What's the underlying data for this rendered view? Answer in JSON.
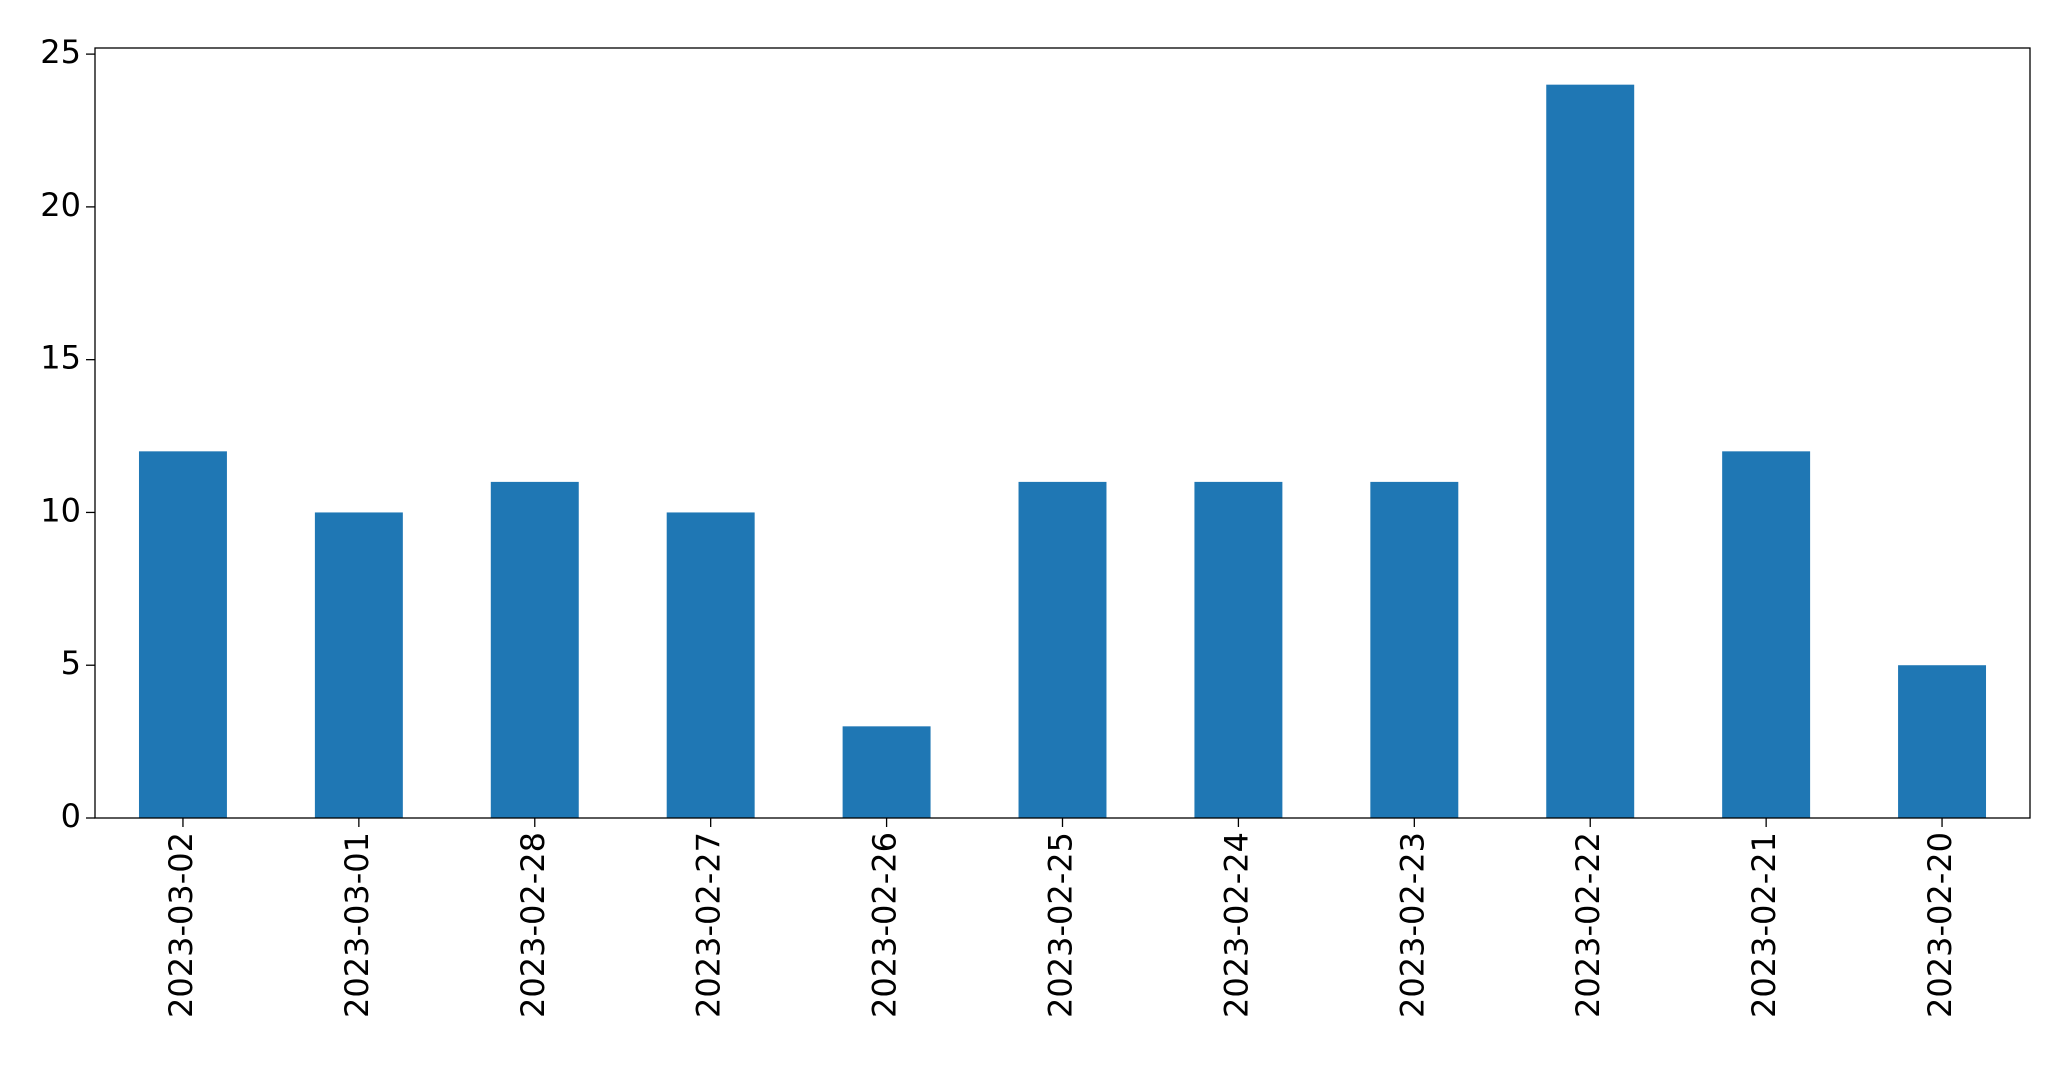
{
  "chart_data": {
    "type": "bar",
    "categories": [
      "2023-03-02",
      "2023-03-01",
      "2023-02-28",
      "2023-02-27",
      "2023-02-26",
      "2023-02-25",
      "2023-02-24",
      "2023-02-23",
      "2023-02-22",
      "2023-02-21",
      "2023-02-20"
    ],
    "values": [
      12,
      10,
      11,
      10,
      3,
      11,
      11,
      11,
      24,
      12,
      5
    ],
    "color": "#1f77b4",
    "ylim": [
      0,
      25.2
    ],
    "yticks": [
      0,
      5,
      10,
      15,
      20,
      25
    ],
    "grid": false
  }
}
